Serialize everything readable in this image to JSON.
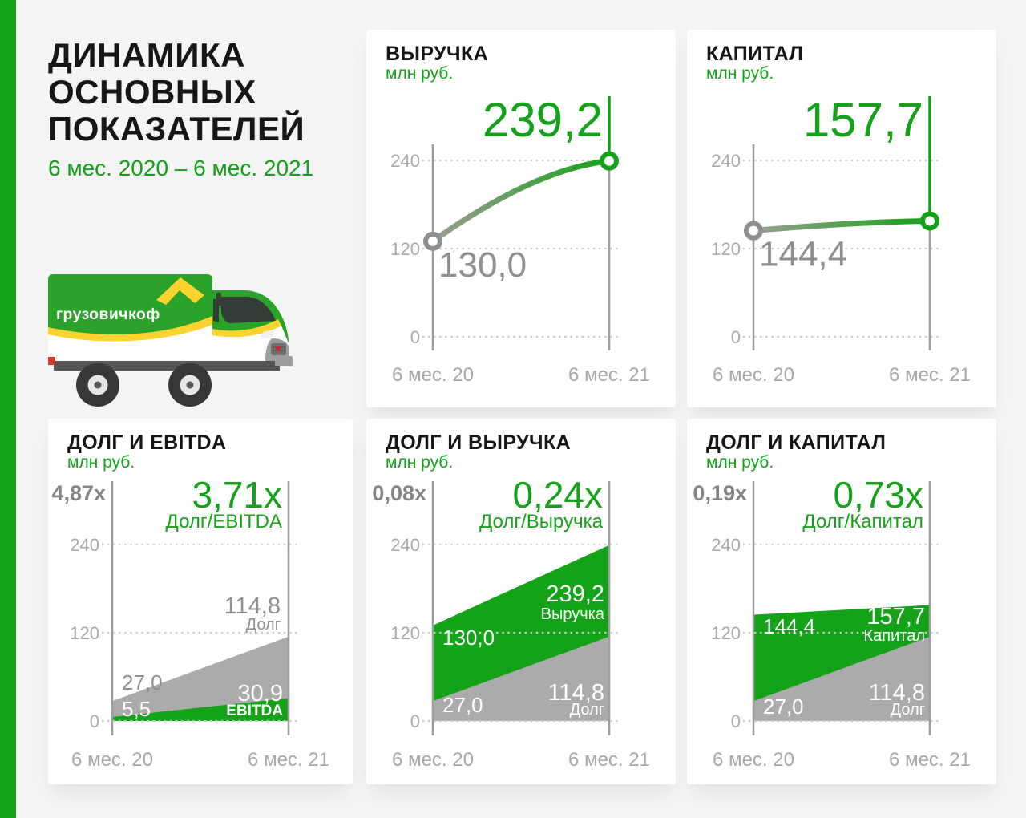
{
  "header": {
    "title": "ДИНАМИКА\nОСНОВНЫХ\nПОКАЗАТЕЛЕЙ",
    "subtitle": "6 мес. 2020 – 6 мес. 2021"
  },
  "truck": {
    "logo_text": "грузовичкоф"
  },
  "colors": {
    "accent_green": "#14A219",
    "area_gray": "#ABABAB",
    "line_gradient_start": "#9B9E90",
    "marker_gray": "#8F8F8F",
    "text_gray_value": "#8F8F8F",
    "ratio_gray": "#848484",
    "tick_gray": "#A8A8A8",
    "axis_gray": "#9C9C9C",
    "grid_dot": "#C9C9C9",
    "white": "#FFFFFF",
    "brand_yellow": "#FDD32F"
  },
  "chart_data": [
    {
      "id": "revenue",
      "type": "line",
      "title": "ВЫРУЧКА",
      "units": "млн руб.",
      "x_labels": [
        "6 мес. 20",
        "6 мес. 21"
      ],
      "yticks": [
        240,
        120,
        0
      ],
      "ylim": [
        0,
        263
      ],
      "values": [
        130.0,
        239.2
      ],
      "value_labels": [
        "130,0",
        "239,2"
      ]
    },
    {
      "id": "capital",
      "type": "line",
      "title": "КАПИТАЛ",
      "units": "млн руб.",
      "x_labels": [
        "6 мес. 20",
        "6 мес. 21"
      ],
      "yticks": [
        240,
        120,
        0
      ],
      "ylim": [
        0,
        263
      ],
      "values": [
        144.4,
        157.7
      ],
      "value_labels": [
        "144,4",
        "157,7"
      ]
    },
    {
      "id": "debt-ebitda",
      "type": "area",
      "title": "ДОЛГ И EBITDA",
      "units": "млн руб.",
      "x_labels": [
        "6 мес. 20",
        "6 мес. 21"
      ],
      "yticks": [
        240,
        120,
        0
      ],
      "ylim": [
        0,
        263
      ],
      "ratio_start": "4,87x",
      "ratio_end": "3,71x",
      "ratio_label": "Долг/EBITDA",
      "series": [
        {
          "name": "Долг",
          "color": "gray",
          "values": [
            27.0,
            114.8
          ],
          "labels": [
            "27,0",
            "114,8"
          ]
        },
        {
          "name": "EBITDA",
          "color": "green",
          "values": [
            5.5,
            30.9
          ],
          "labels": [
            "5,5",
            "30,9"
          ]
        }
      ]
    },
    {
      "id": "debt-revenue",
      "type": "area",
      "title": "ДОЛГ И ВЫРУЧКА",
      "units": "млн руб.",
      "x_labels": [
        "6 мес. 20",
        "6 мес. 21"
      ],
      "yticks": [
        240,
        120,
        0
      ],
      "ylim": [
        0,
        263
      ],
      "ratio_start": "0,08x",
      "ratio_end": "0,24x",
      "ratio_label": "Долг/Выручка",
      "series": [
        {
          "name": "Выручка",
          "color": "green",
          "values": [
            130.0,
            239.2
          ],
          "labels": [
            "130,0",
            "239,2"
          ]
        },
        {
          "name": "Долг",
          "color": "gray",
          "values": [
            27.0,
            114.8
          ],
          "labels": [
            "27,0",
            "114,8"
          ]
        }
      ]
    },
    {
      "id": "debt-capital",
      "type": "area",
      "title": "ДОЛГ И КАПИТАЛ",
      "units": "млн руб.",
      "x_labels": [
        "6 мес. 20",
        "6 мес. 21"
      ],
      "yticks": [
        240,
        120,
        0
      ],
      "ylim": [
        0,
        263
      ],
      "ratio_start": "0,19x",
      "ratio_end": "0,73x",
      "ratio_label": "Долг/Капитал",
      "series": [
        {
          "name": "Капитал",
          "color": "green",
          "values": [
            144.4,
            157.7
          ],
          "labels": [
            "144,4",
            "157,7"
          ]
        },
        {
          "name": "Долг",
          "color": "gray",
          "values": [
            27.0,
            114.8
          ],
          "labels": [
            "27,0",
            "114,8"
          ]
        }
      ]
    }
  ]
}
